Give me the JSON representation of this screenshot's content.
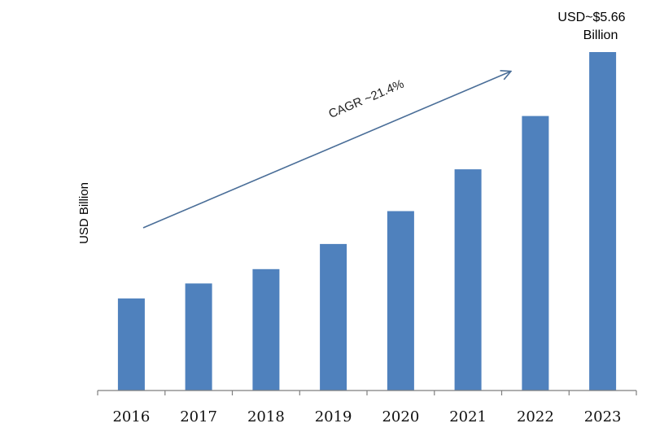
{
  "chart_data": {
    "type": "bar",
    "categories": [
      "2016",
      "2017",
      "2018",
      "2019",
      "2020",
      "2021",
      "2022",
      "2023"
    ],
    "values": [
      1.54,
      1.79,
      2.03,
      2.45,
      3.0,
      3.7,
      4.59,
      5.66
    ],
    "ylabel": "USD Billion",
    "xlabel": "",
    "title": "",
    "ylim": [
      0,
      6.0
    ],
    "grid": false,
    "legend": "none",
    "bar_color": "#4f81bd",
    "annotations": {
      "cagr": "CAGR ~21.4%",
      "callout_line1": "USD~$5.66",
      "callout_line2": "Billion"
    },
    "trend_arrow_color": "#4a6e98"
  }
}
